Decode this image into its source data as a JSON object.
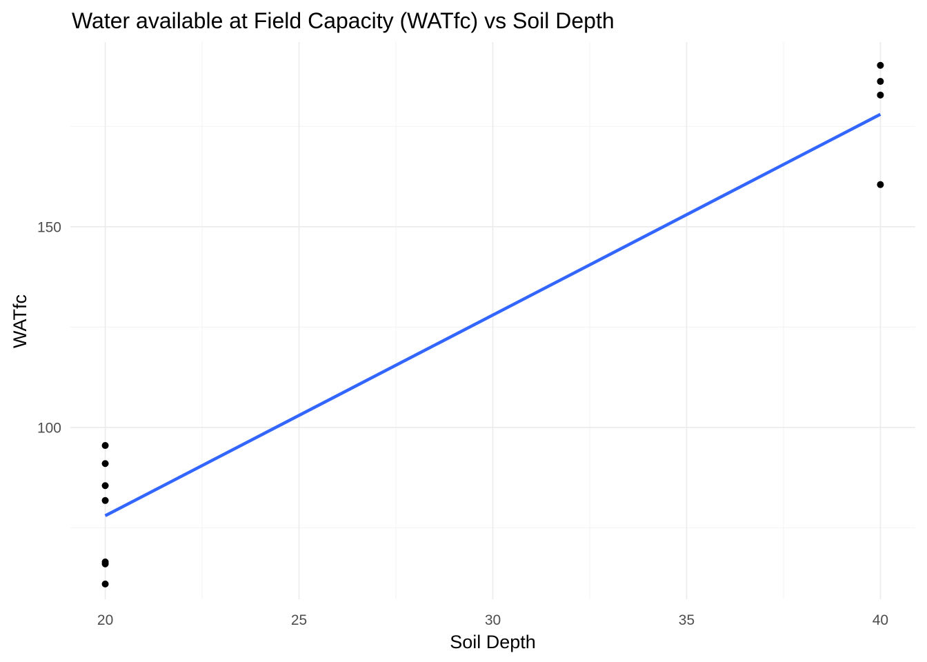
{
  "chart_data": {
    "type": "scatter",
    "title": "Water available at Field Capacity (WATfc) vs Soil Depth",
    "xlabel": "Soil Depth",
    "ylabel": "WATfc",
    "xlim": [
      19.1,
      40.9
    ],
    "ylim": [
      57.2,
      196.0
    ],
    "x_ticks": [
      20,
      25,
      30,
      35,
      40
    ],
    "x_minor_ticks": [
      22.5,
      27.5,
      32.5,
      37.5
    ],
    "y_ticks": [
      100,
      150
    ],
    "y_minor_ticks": [
      75,
      125,
      175
    ],
    "grid": true,
    "legend": "none",
    "point_color": "#000000",
    "line_color": "#3366ff",
    "series": [
      {
        "kind": "points",
        "x": [
          20,
          20,
          20,
          20,
          20,
          20,
          20,
          40,
          40,
          40,
          40
        ],
        "y": [
          95.5,
          91.0,
          85.5,
          81.8,
          66.5,
          66.0,
          61.0,
          190.2,
          186.2,
          182.8,
          160.5
        ]
      },
      {
        "kind": "regression-line",
        "x": [
          20,
          40
        ],
        "y": [
          78.0,
          178.0
        ]
      }
    ]
  }
}
